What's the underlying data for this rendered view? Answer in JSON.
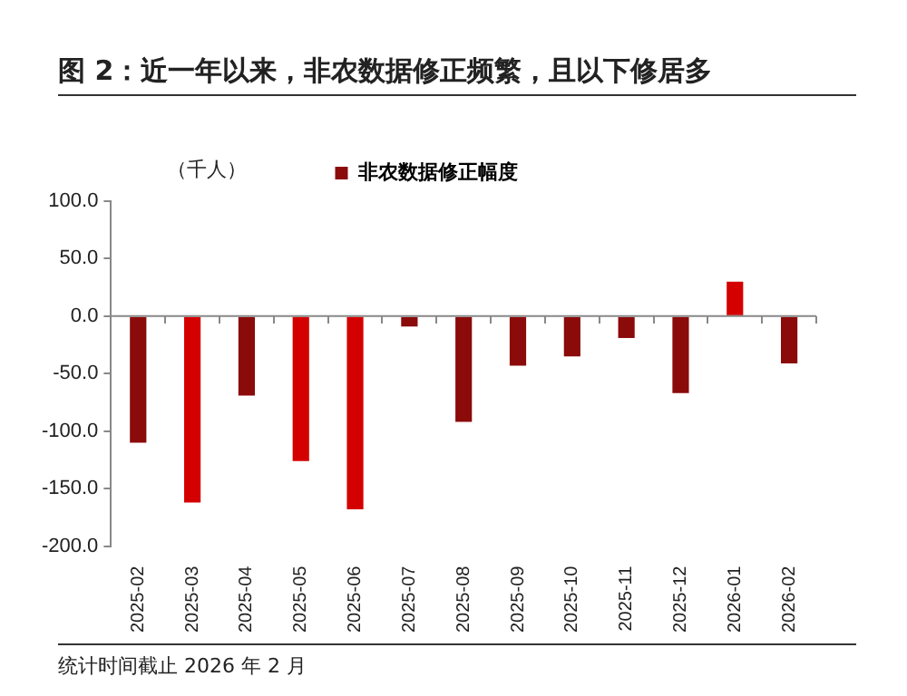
{
  "chart_data": {
    "type": "bar",
    "title": "图 2：近一年以来，非农数据修正频繁，且以下修居多",
    "ylabel": "（千人）",
    "categories": [
      "2025-02",
      "2025-03",
      "2025-04",
      "2025-05",
      "2025-06",
      "2025-07",
      "2025-08",
      "2025-09",
      "2025-10",
      "2025-11",
      "2025-12",
      "2026-01",
      "2026-02"
    ],
    "series": [
      {
        "name": "非农数据修正幅度",
        "color": "#8b0a0a",
        "colors": [
          "#8b0a0a",
          "#d40000",
          "#8b0a0a",
          "#d40000",
          "#d40000",
          "#8b0a0a",
          "#8b0a0a",
          "#8b0a0a",
          "#8b0a0a",
          "#8b0a0a",
          "#8b0a0a",
          "#d40000",
          "#8b0a0a"
        ],
        "values": [
          -110,
          -162,
          -69,
          -126,
          -168,
          -9,
          -92,
          -43,
          -35,
          -19,
          -67,
          30,
          -41
        ]
      }
    ],
    "ylim": [
      -200,
      100
    ],
    "yticks": [
      {
        "value": -200,
        "label": "-200.0"
      },
      {
        "value": -150,
        "label": "-150.0"
      },
      {
        "value": -100,
        "label": "-100.0"
      },
      {
        "value": -50,
        "label": "-50.0"
      },
      {
        "value": 0,
        "label": "0.0"
      },
      {
        "value": 50,
        "label": "50.0"
      },
      {
        "value": 100,
        "label": "100.0"
      }
    ],
    "legend": "top",
    "grid": false,
    "ref_lines": [
      {
        "axis": "y",
        "value": 0,
        "color": "#888888"
      }
    ],
    "annotations": [
      "统计时间截止 2026 年 2 月"
    ]
  }
}
